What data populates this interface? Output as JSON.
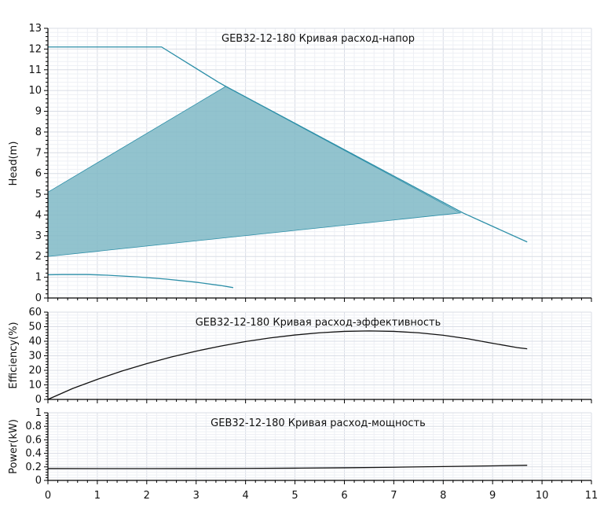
{
  "chart_data": [
    {
      "type": "area",
      "title": "GEB32-12-180 Кривая расход-напор",
      "xlabel": "",
      "ylabel": "Head(m)",
      "xlim": [
        0,
        11
      ],
      "ylim": [
        0,
        13
      ],
      "x_ticks": [
        "0",
        "1",
        "2",
        "3",
        "4",
        "5",
        "6",
        "7",
        "8",
        "9",
        "10",
        "11"
      ],
      "y_ticks": [
        "0",
        "1",
        "2",
        "3",
        "4",
        "5",
        "6",
        "7",
        "8",
        "9",
        "10",
        "11",
        "12",
        "13"
      ],
      "grid": true,
      "colors": {
        "area": "#7fb8c6",
        "line": "#2d8fa8"
      },
      "series": [
        {
          "x": [
            0,
            2.3,
            3.45,
            3.6,
            8.4,
            9.7
          ],
          "y": [
            12.1,
            12.1,
            10.4,
            10.2,
            4.1,
            2.7
          ]
        },
        {
          "x": [
            0,
            0.3,
            0.8,
            1.2,
            1.8,
            2.4,
            3.0,
            3.5,
            3.75
          ],
          "y": [
            1.12,
            1.13,
            1.13,
            1.1,
            1.02,
            0.91,
            0.76,
            0.6,
            0.5
          ]
        }
      ],
      "polygon": {
        "x": [
          0,
          3.6,
          8.35,
          0
        ],
        "y": [
          5.1,
          10.2,
          4.1,
          2.0
        ]
      }
    },
    {
      "type": "line",
      "title": "GEB32-12-180 Кривая расход-эффективность",
      "xlabel": "",
      "ylabel": "Efficiency(%)",
      "xlim": [
        0,
        11
      ],
      "ylim": [
        0,
        60
      ],
      "x_ticks": [
        "0",
        "1",
        "2",
        "3",
        "4",
        "5",
        "6",
        "7",
        "8",
        "9",
        "10",
        "11"
      ],
      "y_ticks": [
        "0",
        "10",
        "20",
        "30",
        "40",
        "50",
        "60"
      ],
      "grid": true,
      "colors": {
        "line": "#111111"
      },
      "series": [
        {
          "x": [
            0,
            0.5,
            1,
            1.5,
            2,
            2.5,
            3,
            3.5,
            4,
            4.5,
            5,
            5.5,
            6,
            6.5,
            7,
            7.5,
            8,
            8.5,
            9,
            9.5,
            9.7
          ],
          "y": [
            0,
            7.5,
            13.8,
            19.5,
            24.6,
            29.2,
            33.2,
            36.7,
            39.8,
            42.3,
            44.3,
            45.8,
            46.8,
            47.1,
            46.8,
            45.8,
            44.1,
            41.7,
            38.6,
            35.6,
            34.8
          ]
        }
      ]
    },
    {
      "type": "line",
      "title": "GEB32-12-180 Кривая расход-мощность",
      "xlabel": "",
      "ylabel": "Power(kW)",
      "xlim": [
        0,
        11
      ],
      "ylim": [
        0,
        1
      ],
      "x_ticks": [
        "0",
        "1",
        "2",
        "3",
        "4",
        "5",
        "6",
        "7",
        "8",
        "9",
        "10",
        "11"
      ],
      "y_ticks": [
        "0",
        "0.2",
        "0.4",
        "0.6",
        "0.8",
        "1"
      ],
      "grid": true,
      "colors": {
        "line": "#111111"
      },
      "series": [
        {
          "x": [
            0,
            1,
            2,
            3,
            4,
            5,
            6,
            7,
            8,
            9,
            9.7
          ],
          "y": [
            0.175,
            0.174,
            0.174,
            0.175,
            0.177,
            0.181,
            0.187,
            0.195,
            0.205,
            0.215,
            0.223
          ]
        }
      ]
    }
  ]
}
